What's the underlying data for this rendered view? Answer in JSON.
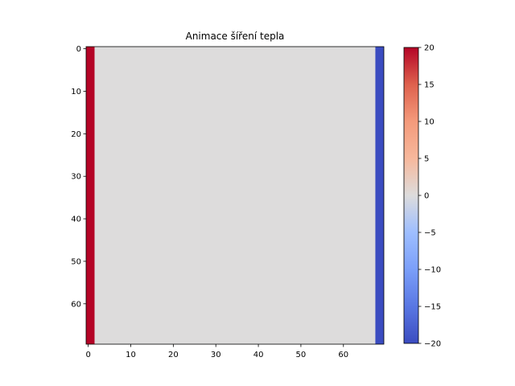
{
  "chart_data": {
    "type": "heatmap",
    "title": "Animace šíření tepla",
    "grid": false,
    "grid_size": [
      70,
      70
    ],
    "x_ticks": [
      0,
      10,
      20,
      30,
      40,
      50,
      60
    ],
    "y_ticks": [
      0,
      10,
      20,
      30,
      40,
      50,
      60
    ],
    "x_range": [
      -0.5,
      69.5
    ],
    "y_range": [
      -0.5,
      69.5
    ],
    "y_inverted": true,
    "columns": [
      {
        "from": 0,
        "to": 1,
        "value": 20
      },
      {
        "from": 2,
        "to": 67,
        "value": 0
      },
      {
        "from": 68,
        "to": 69,
        "value": -20
      }
    ],
    "colormap": "coolwarm",
    "colorbar": {
      "range": [
        -20,
        20
      ],
      "ticks": [
        20,
        15,
        10,
        5,
        0,
        -5,
        -10,
        -15,
        -20
      ],
      "tick_labels": [
        "20",
        "15",
        "10",
        "5",
        "0",
        "−5",
        "−10",
        "−15",
        "−20"
      ],
      "placement": "right"
    },
    "colors": {
      "hot": "#b40426",
      "neutral": "#dddcdc",
      "cold": "#3b4cc0"
    }
  }
}
